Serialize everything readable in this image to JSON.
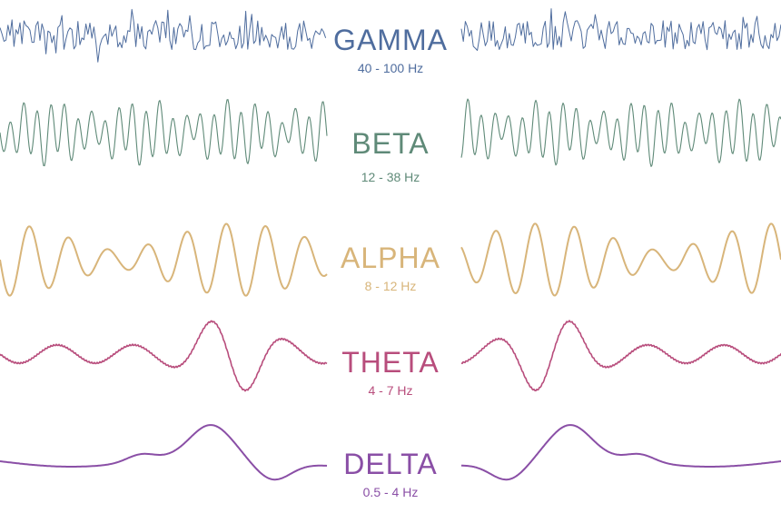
{
  "bands": [
    {
      "key": "gamma",
      "name": "GAMMA",
      "range": "40 - 100 Hz",
      "color": "#4f6d9e"
    },
    {
      "key": "beta",
      "name": "BETA",
      "range": "12 - 38 Hz",
      "color": "#5f8a78"
    },
    {
      "key": "alpha",
      "name": "ALPHA",
      "range": "8 - 12 Hz",
      "color": "#d8b57a"
    },
    {
      "key": "theta",
      "name": "THETA",
      "range": "4 - 7 Hz",
      "color": "#b84d7c"
    },
    {
      "key": "delta",
      "name": "DELTA",
      "range": "0.5 - 4 Hz",
      "color": "#8a4fa6"
    }
  ]
}
